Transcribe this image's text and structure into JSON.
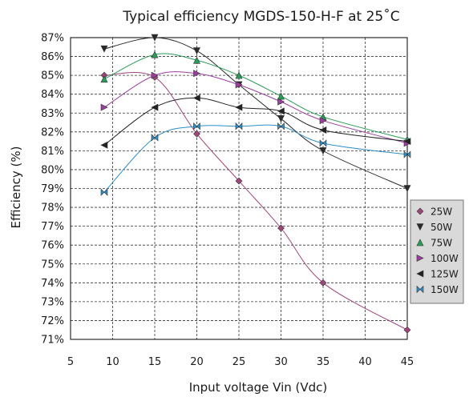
{
  "chart_data": {
    "type": "line",
    "title": "Typical efficiency MGDS-150-H-F at 25˚C",
    "xlabel": "Input voltage Vin (Vdc)",
    "ylabel": "Efficiency (%)",
    "xlim": [
      5,
      45
    ],
    "ylim": [
      71,
      87
    ],
    "xticks": [
      5,
      10,
      15,
      20,
      25,
      30,
      35,
      40,
      45
    ],
    "yticks": [
      71,
      72,
      73,
      74,
      75,
      76,
      77,
      78,
      79,
      80,
      81,
      82,
      83,
      84,
      85,
      86,
      87
    ],
    "y_tick_suffix": "%",
    "grid": "dashed",
    "legend_position": "right",
    "series": [
      {
        "name": "25W",
        "color": "#a0467a",
        "marker": "diamond",
        "x": [
          9,
          15,
          20,
          25,
          30,
          35,
          45
        ],
        "y": [
          85.0,
          84.9,
          81.9,
          79.4,
          76.9,
          74.0,
          71.5
        ]
      },
      {
        "name": "50W",
        "color": "#2b2b2b",
        "marker": "triangle-down",
        "x": [
          9,
          15,
          20,
          25,
          30,
          35,
          45
        ],
        "y": [
          86.4,
          87.0,
          86.3,
          84.5,
          82.7,
          81.0,
          79.0
        ]
      },
      {
        "name": "75W",
        "color": "#2a9b58",
        "marker": "triangle-up",
        "x": [
          9,
          15,
          20,
          25,
          30,
          35,
          45
        ],
        "y": [
          84.8,
          86.1,
          85.8,
          85.0,
          83.9,
          82.8,
          81.6
        ]
      },
      {
        "name": "100W",
        "color": "#9a3f9e",
        "marker": "triangle-right",
        "x": [
          9,
          15,
          20,
          25,
          30,
          35,
          45
        ],
        "y": [
          83.3,
          85.0,
          85.1,
          84.5,
          83.6,
          82.6,
          81.4
        ]
      },
      {
        "name": "125W",
        "color": "#222222",
        "marker": "triangle-left",
        "x": [
          9,
          15,
          20,
          25,
          30,
          35,
          45
        ],
        "y": [
          81.3,
          83.3,
          83.8,
          83.3,
          83.1,
          82.1,
          81.5
        ]
      },
      {
        "name": "150W",
        "color": "#2e8fc9",
        "marker": "bowtie",
        "x": [
          9,
          15,
          20,
          25,
          30,
          35,
          45
        ],
        "y": [
          78.8,
          81.7,
          82.3,
          82.3,
          82.3,
          81.4,
          80.8
        ]
      }
    ]
  }
}
